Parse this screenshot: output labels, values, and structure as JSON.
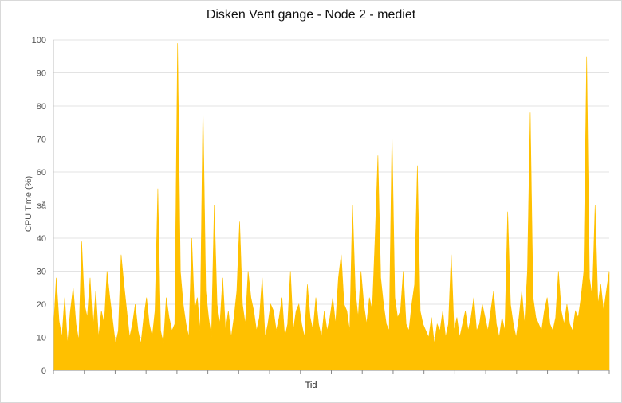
{
  "chart_data": {
    "type": "area",
    "title": "Disken Vent gange - Node 2 - mediet",
    "xlabel": "Tid",
    "ylabel": "CPU Time (%)",
    "ylim": [
      0,
      100
    ],
    "yticks": [
      "0",
      "10",
      "20",
      "30",
      "40",
      "så",
      "60",
      "70",
      "80",
      "90",
      "100"
    ],
    "grid": true,
    "color": "#FFC000",
    "series": [
      {
        "values": [
          12,
          28,
          15,
          10,
          22,
          8,
          18,
          25,
          14,
          9,
          39,
          20,
          16,
          28,
          12,
          24,
          10,
          18,
          14,
          30,
          22,
          15,
          8,
          12,
          35,
          26,
          18,
          10,
          14,
          20,
          12,
          8,
          16,
          22,
          14,
          10,
          18,
          55,
          12,
          8,
          22,
          16,
          12,
          14,
          99,
          30,
          20,
          14,
          10,
          40,
          18,
          22,
          12,
          80,
          24,
          16,
          10,
          50,
          20,
          14,
          28,
          12,
          18,
          10,
          16,
          24,
          45,
          20,
          14,
          30,
          22,
          18,
          12,
          16,
          28,
          10,
          14,
          20,
          18,
          12,
          16,
          22,
          10,
          14,
          30,
          12,
          18,
          20,
          14,
          10,
          26,
          16,
          12,
          22,
          14,
          10,
          18,
          12,
          16,
          22,
          14,
          28,
          35,
          20,
          18,
          12,
          50,
          24,
          16,
          30,
          20,
          14,
          22,
          18,
          40,
          65,
          28,
          20,
          14,
          12,
          72,
          22,
          16,
          18,
          30,
          14,
          12,
          20,
          26,
          62,
          18,
          14,
          12,
          10,
          16,
          8,
          14,
          12,
          18,
          10,
          14,
          35,
          12,
          16,
          10,
          14,
          18,
          12,
          16,
          22,
          12,
          14,
          20,
          16,
          12,
          18,
          24,
          14,
          10,
          16,
          12,
          48,
          20,
          14,
          10,
          16,
          24,
          14,
          30,
          78,
          22,
          16,
          14,
          12,
          18,
          22,
          14,
          12,
          16,
          30,
          18,
          14,
          20,
          14,
          12,
          18,
          16,
          22,
          30,
          95,
          28,
          22,
          50,
          20,
          26,
          18,
          24,
          30
        ]
      }
    ]
  }
}
